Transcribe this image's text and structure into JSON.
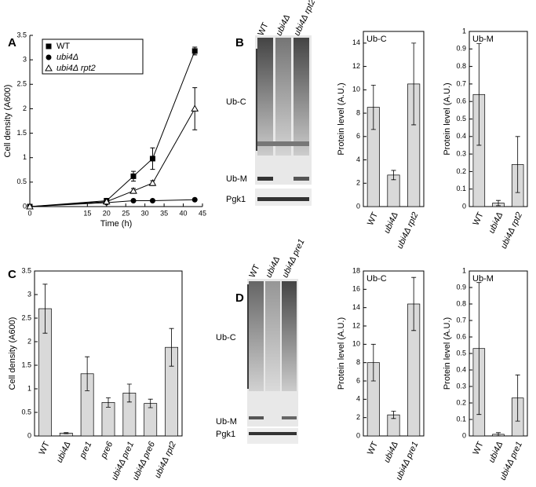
{
  "panel_labels": [
    "A",
    "B",
    "C",
    "D"
  ],
  "blots": [
    {
      "lanes": [
        "WT",
        "ubi4Δ",
        "ubi4Δ rpt2"
      ],
      "bands": [
        "Ub-C",
        "Ub-M",
        "Pgk1"
      ]
    },
    {
      "lanes": [
        "WT",
        "ubi4Δ",
        "ubi4Δ pre1"
      ],
      "bands": [
        "Ub-C",
        "Ub-M",
        "Pgk1"
      ]
    }
  ],
  "chart_data": [
    {
      "type": "line",
      "x_label": "Time (h)",
      "y_label": "Cell density (A600)",
      "x": [
        0,
        20,
        27,
        32,
        43
      ],
      "xlim": [
        0,
        45
      ],
      "xticks": [
        0,
        15,
        20,
        25,
        30,
        35,
        40,
        45
      ],
      "ylim": [
        0,
        3.5
      ],
      "yticks": [
        0,
        0.5,
        1,
        1.5,
        2,
        2.5,
        3,
        3.5
      ],
      "legend": "top-left",
      "series": [
        {
          "name": "WT",
          "color": "#000000",
          "marker": "square",
          "values": [
            0,
            0.12,
            0.62,
            0.98,
            3.18
          ],
          "errors": [
            null,
            0.03,
            0.1,
            0.22,
            0.08
          ]
        },
        {
          "name": "ubi4Δ",
          "color": "#000000",
          "marker": "circle",
          "values": [
            0,
            0.08,
            0.12,
            0.12,
            0.14
          ]
        },
        {
          "name": "ubi4Δ rpt2",
          "color": "#000000",
          "marker": "triangle",
          "values": [
            0,
            0.1,
            0.32,
            0.48,
            2.0
          ],
          "errors": [
            null,
            0.02,
            0.05,
            0.05,
            0.43
          ]
        }
      ]
    },
    {
      "type": "bar",
      "title": "Ub-C",
      "y_label": "Protein level (A.U.)",
      "color": "#d9d9d9",
      "categories": [
        "WT",
        "ubi4Δ",
        "ubi4Δ rpt2"
      ],
      "values": [
        8.5,
        2.7,
        10.5
      ],
      "errors": [
        1.9,
        0.4,
        3.5
      ],
      "ylim": [
        0,
        15
      ],
      "yticks": [
        0,
        2,
        4,
        6,
        8,
        10,
        12,
        14
      ]
    },
    {
      "type": "bar",
      "title": "Ub-M",
      "y_label": "Protein level (A.U.)",
      "color": "#d9d9d9",
      "categories": [
        "WT",
        "ubi4Δ",
        "ubi4Δ rpt2"
      ],
      "values": [
        0.64,
        0.02,
        0.24
      ],
      "errors": [
        0.29,
        0.015,
        0.16
      ],
      "ylim": [
        0,
        1
      ],
      "yticks": [
        0,
        0.1,
        0.2,
        0.3,
        0.4,
        0.5,
        0.6,
        0.7,
        0.8,
        0.9,
        1
      ]
    },
    {
      "type": "bar",
      "y_label": "Cell density (A600)",
      "color": "#d9d9d9",
      "categories": [
        "WT",
        "ubi4Δ",
        "pre1",
        "pre6",
        "ubi4Δ pre1",
        "ubi4Δ pre6",
        "ubi4Δ rpt2"
      ],
      "values": [
        2.7,
        0.06,
        1.32,
        0.71,
        0.91,
        0.69,
        1.88
      ],
      "errors": [
        0.52,
        0.01,
        0.36,
        0.1,
        0.19,
        0.09,
        0.4
      ],
      "ylim": [
        0,
        3.5
      ],
      "yticks": [
        0,
        0.5,
        1,
        1.5,
        2,
        2.5,
        3,
        3.5
      ]
    },
    {
      "type": "bar",
      "title": "Ub-C",
      "y_label": "Protein level (A.U.)",
      "color": "#d9d9d9",
      "categories": [
        "WT",
        "ubi4Δ",
        "ubi4Δ pre1"
      ],
      "values": [
        8,
        2.3,
        14.4
      ],
      "errors": [
        2.0,
        0.4,
        2.9
      ],
      "ylim": [
        0,
        18
      ],
      "yticks": [
        0,
        2,
        4,
        6,
        8,
        10,
        12,
        14,
        16,
        18
      ]
    },
    {
      "type": "bar",
      "title": "Ub-M",
      "y_label": "Protein level (A.U.)",
      "color": "#d9d9d9",
      "categories": [
        "WT",
        "ubi4Δ",
        "ubi4Δ pre1"
      ],
      "values": [
        0.53,
        0.01,
        0.23
      ],
      "errors": [
        0.4,
        0.01,
        0.14
      ],
      "ylim": [
        0,
        1
      ],
      "yticks": [
        0,
        0.1,
        0.2,
        0.3,
        0.4,
        0.5,
        0.6,
        0.7,
        0.8,
        0.9,
        1
      ]
    }
  ]
}
